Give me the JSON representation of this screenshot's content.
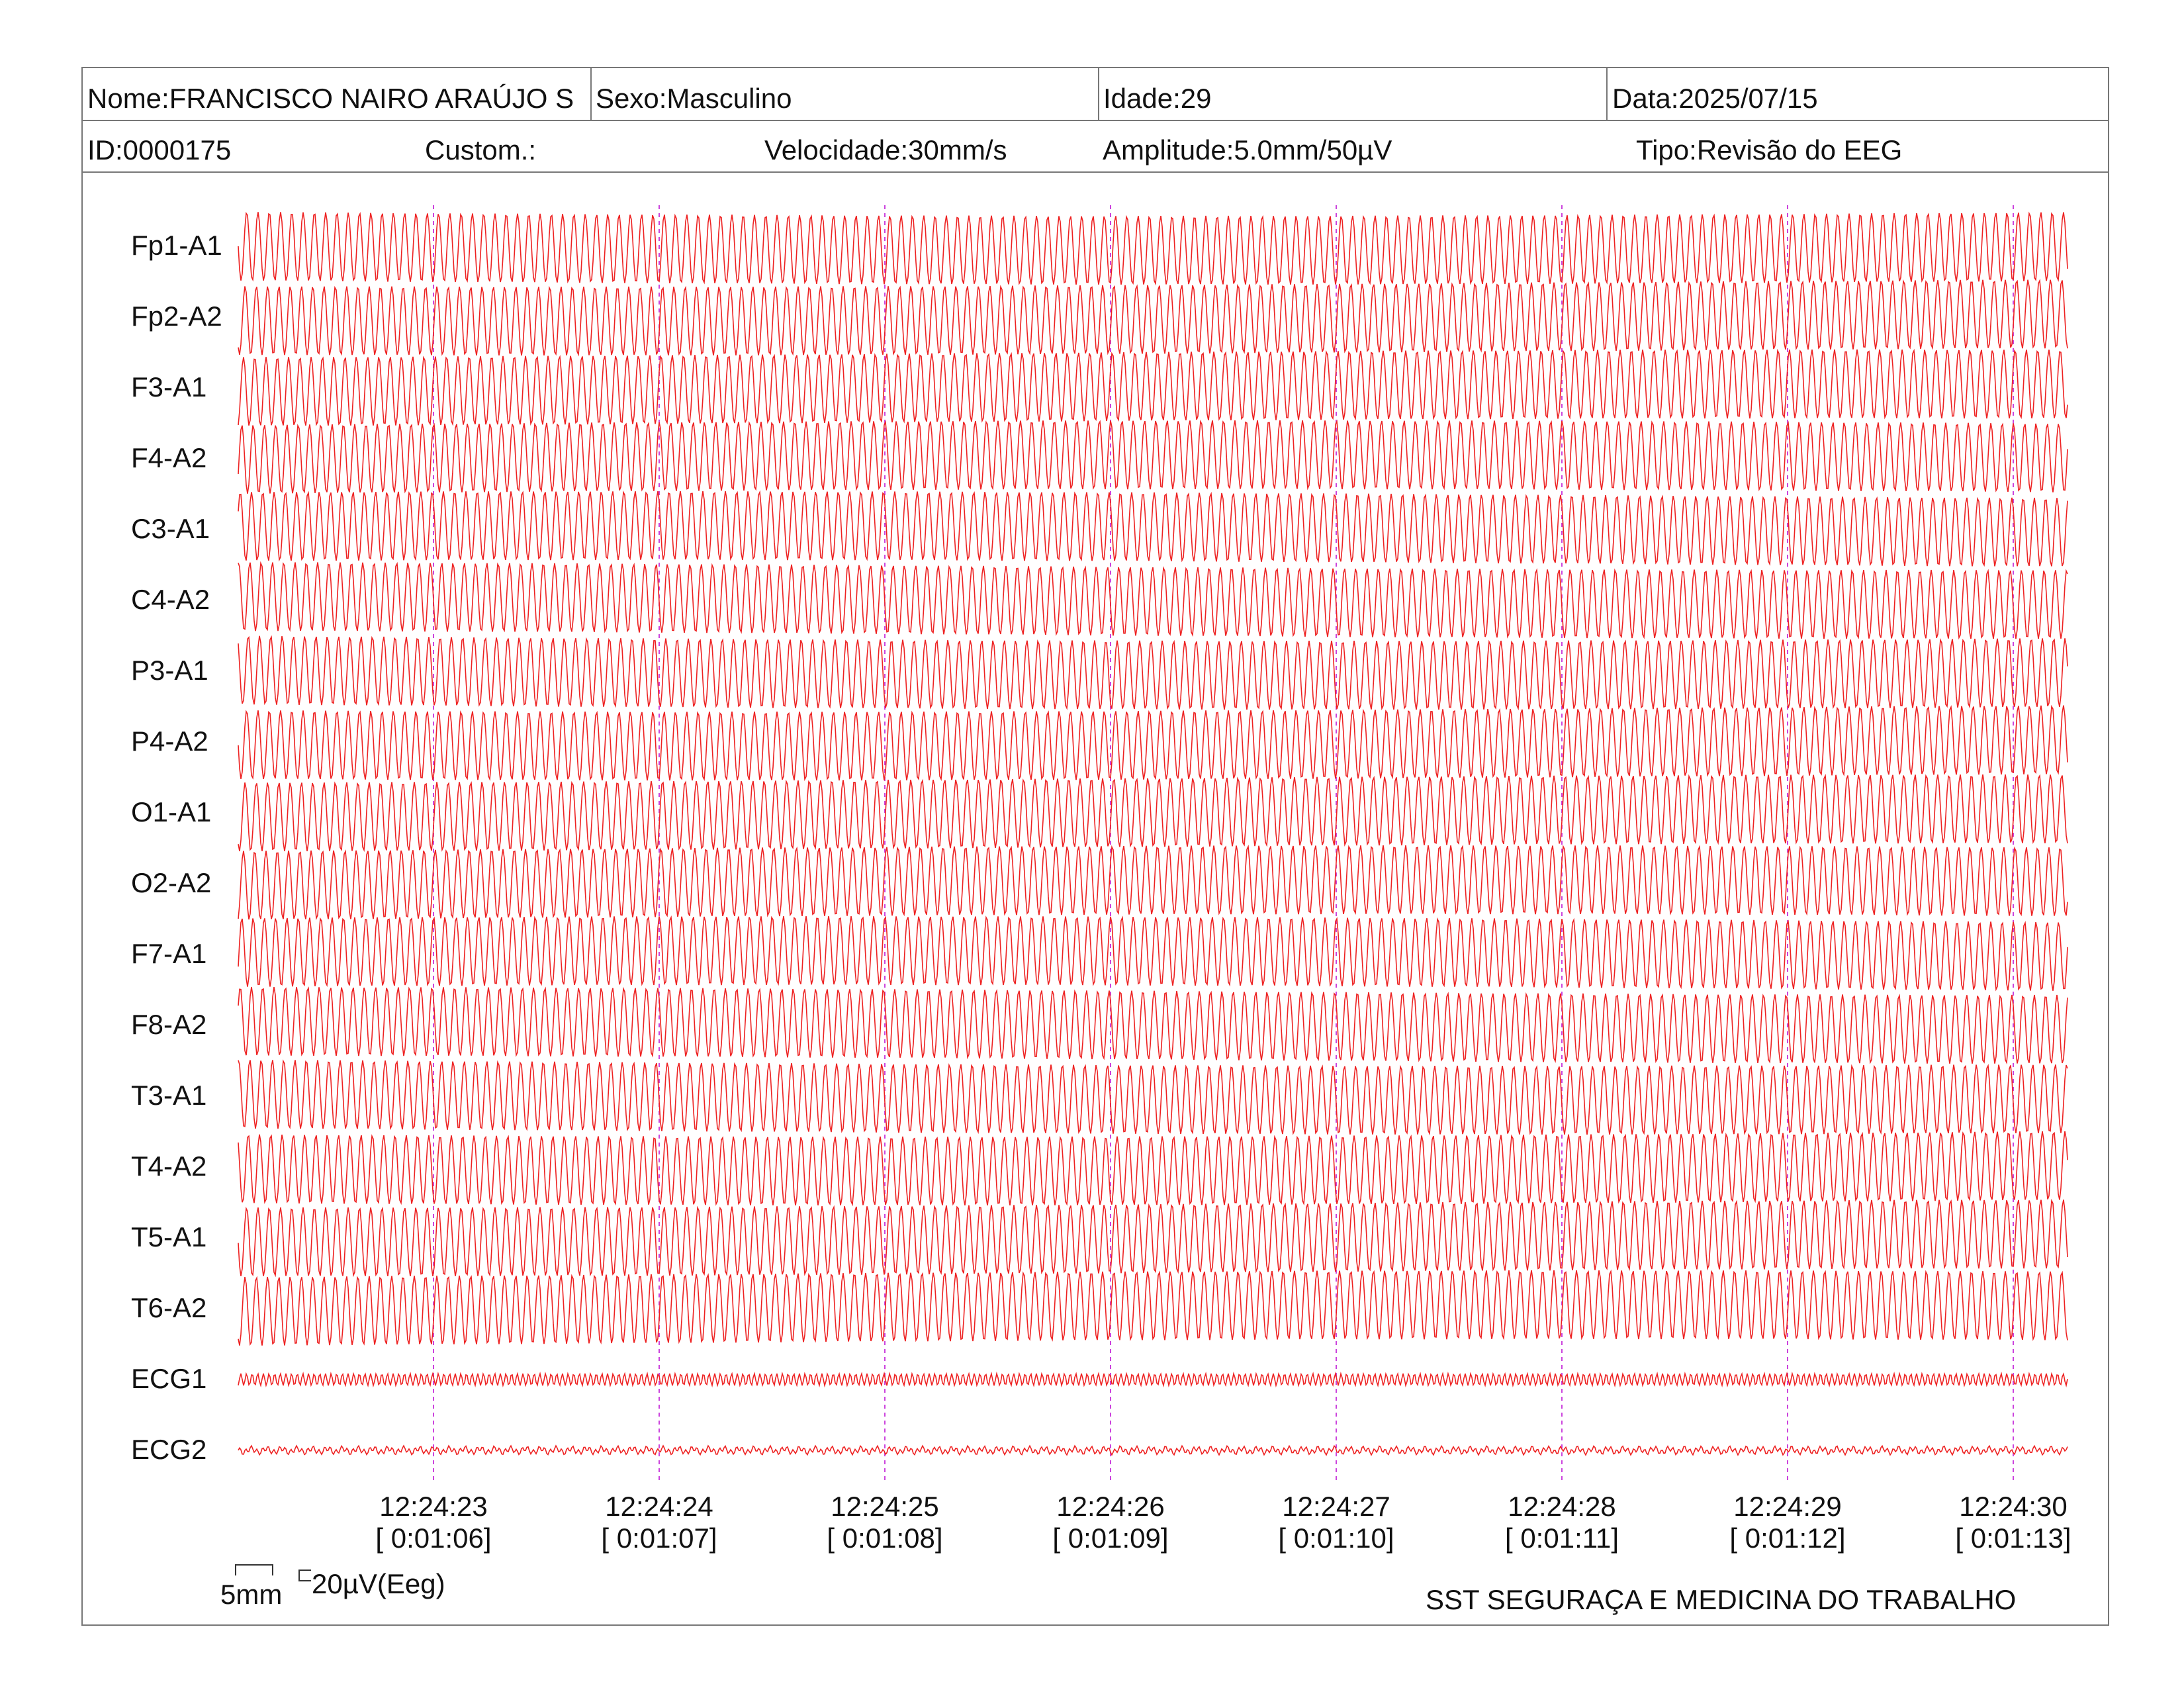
{
  "header": {
    "row1": [
      {
        "key": "name",
        "text": "Nome:FRANCISCO NAIRO ARAÚJO S"
      },
      {
        "key": "sex",
        "text": "Sexo:Masculino"
      },
      {
        "key": "age",
        "text": "Idade:29"
      },
      {
        "key": "date",
        "text": "Data:2025/07/15"
      }
    ],
    "row2": [
      {
        "key": "id",
        "text": "ID:0000175"
      },
      {
        "key": "custom",
        "text": "Custom.:"
      },
      {
        "key": "speed",
        "text": "Velocidade:30mm/s"
      },
      {
        "key": "amplitude",
        "text": "Amplitude:5.0mm/50µV"
      },
      {
        "key": "type",
        "text": "Tipo:Revisão do EEG"
      }
    ]
  },
  "scale_bar": {
    "time_label": "5mm",
    "amp_label": "20µV(Eeg)"
  },
  "footer": {
    "org": "SST SEGURAÇA E MEDICINA DO TRABALHO"
  },
  "colors": {
    "trace": "#ee2222",
    "marker": "#cc44dd",
    "border": "#777777"
  },
  "chart_data": {
    "type": "line",
    "channels": [
      "Fp1-A1",
      "Fp2-A2",
      "F3-A1",
      "F4-A2",
      "C3-A1",
      "C4-A2",
      "P3-A1",
      "P4-A2",
      "O1-A1",
      "O2-A2",
      "F7-A1",
      "F8-A2",
      "T3-A1",
      "T4-A2",
      "T5-A1",
      "T6-A2",
      "ECG1",
      "ECG2"
    ],
    "time_ticks": [
      {
        "clock": "12:24:23",
        "elapsed": "[ 0:01:06]"
      },
      {
        "clock": "12:24:24",
        "elapsed": "[ 0:01:07]"
      },
      {
        "clock": "12:24:25",
        "elapsed": "[ 0:01:08]"
      },
      {
        "clock": "12:24:26",
        "elapsed": "[ 0:01:09]"
      },
      {
        "clock": "12:24:27",
        "elapsed": "[ 0:01:10]"
      },
      {
        "clock": "12:24:28",
        "elapsed": "[ 0:01:11]"
      },
      {
        "clock": "12:24:29",
        "elapsed": "[ 0:01:12]"
      },
      {
        "clock": "12:24:30",
        "elapsed": "[ 0:01:13]"
      }
    ],
    "eeg_frequency_hz": 20,
    "ecg_frequency_hz": 40
  }
}
